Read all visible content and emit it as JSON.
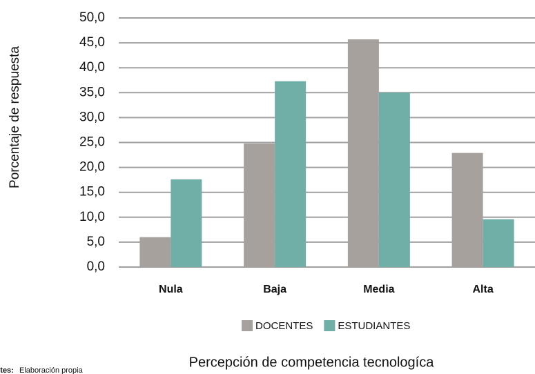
{
  "chart_data": {
    "type": "bar",
    "ylabel": "Porcentaje de respuesta",
    "xlabel": "Percepción de competencia tecnologíca",
    "note": {
      "label": "Fuentes:",
      "text": "Elaboración propia"
    },
    "categories": [
      "Nula",
      "Baja",
      "Media",
      "Alta"
    ],
    "series": [
      {
        "name": "DOCENTES",
        "color": "#a6a19d",
        "values": [
          6.0,
          24.8,
          45.7,
          22.9
        ]
      },
      {
        "name": "ESTUDIANTES",
        "color": "#6fafa7",
        "values": [
          17.6,
          37.3,
          35.0,
          9.6
        ]
      }
    ],
    "ylim": [
      0,
      50
    ],
    "yticks": [
      {
        "value": 0,
        "label": "0,0"
      },
      {
        "value": 5,
        "label": "5,0"
      },
      {
        "value": 10,
        "label": "10,0"
      },
      {
        "value": 15,
        "label": "15,0"
      },
      {
        "value": 20,
        "label": "20,0"
      },
      {
        "value": 25,
        "label": "25,0"
      },
      {
        "value": 30,
        "label": "30,0"
      },
      {
        "value": 35,
        "label": "35,0"
      },
      {
        "value": 40,
        "label": "40,0"
      },
      {
        "value": 45,
        "label": "45,0"
      },
      {
        "value": 50,
        "label": "50,0"
      }
    ],
    "grid": true,
    "legend": "bottom"
  }
}
